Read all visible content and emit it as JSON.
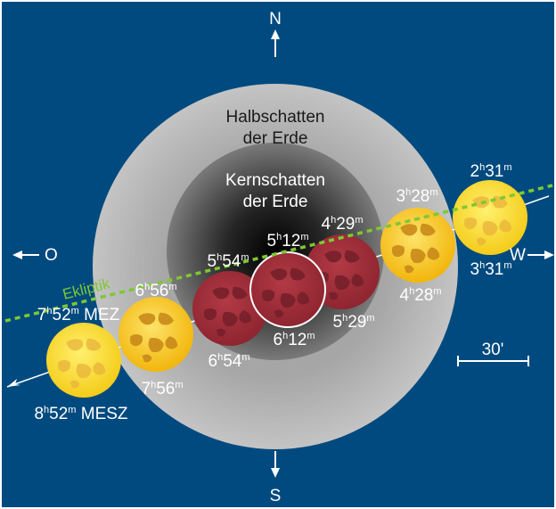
{
  "colors": {
    "background": "#004a7f",
    "penumbra": "#bdbdbd",
    "umbra_center": "#000000",
    "umbra_edge": "#7a7a7a",
    "moon_yellow": "#f5c40f",
    "moon_red": "#a8323c",
    "ecliptic": "#7ec832",
    "text": "#ffffff"
  },
  "directions": {
    "north": "N",
    "south": "S",
    "east": "O",
    "west": "W"
  },
  "shadow_labels": {
    "penumbra_line1": "Halbschatten",
    "penumbra_line2": "der Erde",
    "umbra_line1": "Kernschatten",
    "umbra_line2": "der Erde"
  },
  "ecliptic_label": "Ekliptik",
  "scale_label": "30'",
  "moons": [
    {
      "id": "moon-231",
      "phase": "penumbral"
    },
    {
      "id": "moon-328",
      "phase": "penumbral"
    },
    {
      "id": "moon-429",
      "phase": "umbral"
    },
    {
      "id": "moon-512",
      "phase": "total"
    },
    {
      "id": "moon-554",
      "phase": "umbral"
    },
    {
      "id": "moon-656",
      "phase": "penumbral"
    },
    {
      "id": "moon-752",
      "phase": "penumbral"
    }
  ],
  "times": [
    {
      "h": "2",
      "m": "31",
      "suffix": ""
    },
    {
      "h": "3",
      "m": "31",
      "suffix": ""
    },
    {
      "h": "3",
      "m": "28",
      "suffix": ""
    },
    {
      "h": "4",
      "m": "28",
      "suffix": ""
    },
    {
      "h": "4",
      "m": "29",
      "suffix": ""
    },
    {
      "h": "5",
      "m": "29",
      "suffix": ""
    },
    {
      "h": "5",
      "m": "12",
      "suffix": ""
    },
    {
      "h": "6",
      "m": "12",
      "suffix": ""
    },
    {
      "h": "5",
      "m": "54",
      "suffix": ""
    },
    {
      "h": "6",
      "m": "54",
      "suffix": ""
    },
    {
      "h": "6",
      "m": "56",
      "suffix": ""
    },
    {
      "h": "7",
      "m": "56",
      "suffix": ""
    },
    {
      "h": "7",
      "m": "52",
      "suffix": " MEZ"
    },
    {
      "h": "8",
      "m": "52",
      "suffix": " MESZ"
    }
  ]
}
